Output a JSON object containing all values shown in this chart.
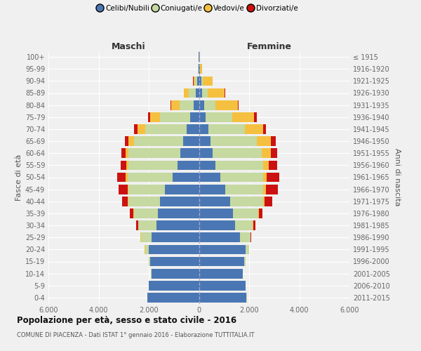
{
  "age_groups": [
    "0-4",
    "5-9",
    "10-14",
    "15-19",
    "20-24",
    "25-29",
    "30-34",
    "35-39",
    "40-44",
    "45-49",
    "50-54",
    "55-59",
    "60-64",
    "65-69",
    "70-74",
    "75-79",
    "80-84",
    "85-89",
    "90-94",
    "95-99",
    "100+"
  ],
  "birth_years": [
    "2011-2015",
    "2006-2010",
    "2001-2005",
    "1996-2000",
    "1991-1995",
    "1986-1990",
    "1981-1985",
    "1976-1980",
    "1971-1975",
    "1966-1970",
    "1961-1965",
    "1956-1960",
    "1951-1955",
    "1946-1950",
    "1941-1945",
    "1936-1940",
    "1931-1935",
    "1926-1930",
    "1921-1925",
    "1916-1920",
    "≤ 1915"
  ],
  "colors": {
    "celibe": "#4a77b4",
    "coniugato": "#c5d9a0",
    "vedovo": "#f5c040",
    "divorziato": "#cc1111"
  },
  "maschi": {
    "celibe": [
      2050,
      2000,
      1900,
      1950,
      2000,
      1900,
      1700,
      1650,
      1550,
      1350,
      1050,
      850,
      750,
      630,
      500,
      350,
      200,
      130,
      70,
      25,
      10
    ],
    "coniugato": [
      5,
      5,
      10,
      50,
      150,
      420,
      720,
      950,
      1250,
      1450,
      1800,
      1950,
      2050,
      1950,
      1650,
      1200,
      580,
      280,
      80,
      15,
      5
    ],
    "vedovo": [
      0,
      0,
      0,
      0,
      5,
      4,
      8,
      15,
      30,
      50,
      70,
      90,
      130,
      230,
      290,
      400,
      330,
      180,
      70,
      15,
      5
    ],
    "divorziato": [
      0,
      0,
      0,
      0,
      8,
      18,
      75,
      145,
      240,
      340,
      340,
      220,
      170,
      145,
      140,
      90,
      25,
      10,
      5,
      0,
      0
    ]
  },
  "femmine": {
    "celibe": [
      1900,
      1850,
      1750,
      1800,
      1850,
      1650,
      1450,
      1350,
      1250,
      1050,
      850,
      660,
      550,
      460,
      380,
      270,
      200,
      130,
      90,
      40,
      15
    ],
    "coniugata": [
      5,
      5,
      10,
      48,
      140,
      400,
      700,
      1000,
      1300,
      1500,
      1700,
      1900,
      1950,
      1850,
      1450,
      1050,
      460,
      220,
      70,
      15,
      5
    ],
    "vedova": [
      0,
      0,
      0,
      0,
      5,
      8,
      18,
      35,
      70,
      110,
      160,
      230,
      380,
      570,
      730,
      880,
      880,
      680,
      380,
      80,
      20
    ],
    "divorziata": [
      0,
      0,
      0,
      0,
      8,
      18,
      75,
      145,
      290,
      490,
      490,
      340,
      240,
      190,
      115,
      95,
      28,
      14,
      5,
      0,
      0
    ]
  },
  "xlim": 6000,
  "xtick_vals": [
    -6000,
    -4000,
    -2000,
    0,
    2000,
    4000,
    6000
  ],
  "xtick_labels": [
    "6.000",
    "4.000",
    "2.000",
    "0",
    "2.000",
    "4.000",
    "6.000"
  ],
  "title": "Popolazione per età, sesso e stato civile - 2016",
  "subtitle": "COMUNE DI PIACENZA - Dati ISTAT 1° gennaio 2016 - Elaborazione TUTTITALIA.IT",
  "ylabel_left": "Fasce di età",
  "ylabel_right": "Anni di nascita",
  "label_maschi": "Maschi",
  "label_femmine": "Femmine",
  "legend_labels": [
    "Celibi/Nubili",
    "Coniugati/e",
    "Vedovi/e",
    "Divorziati/e"
  ],
  "bg_color": "#f0f0f0"
}
